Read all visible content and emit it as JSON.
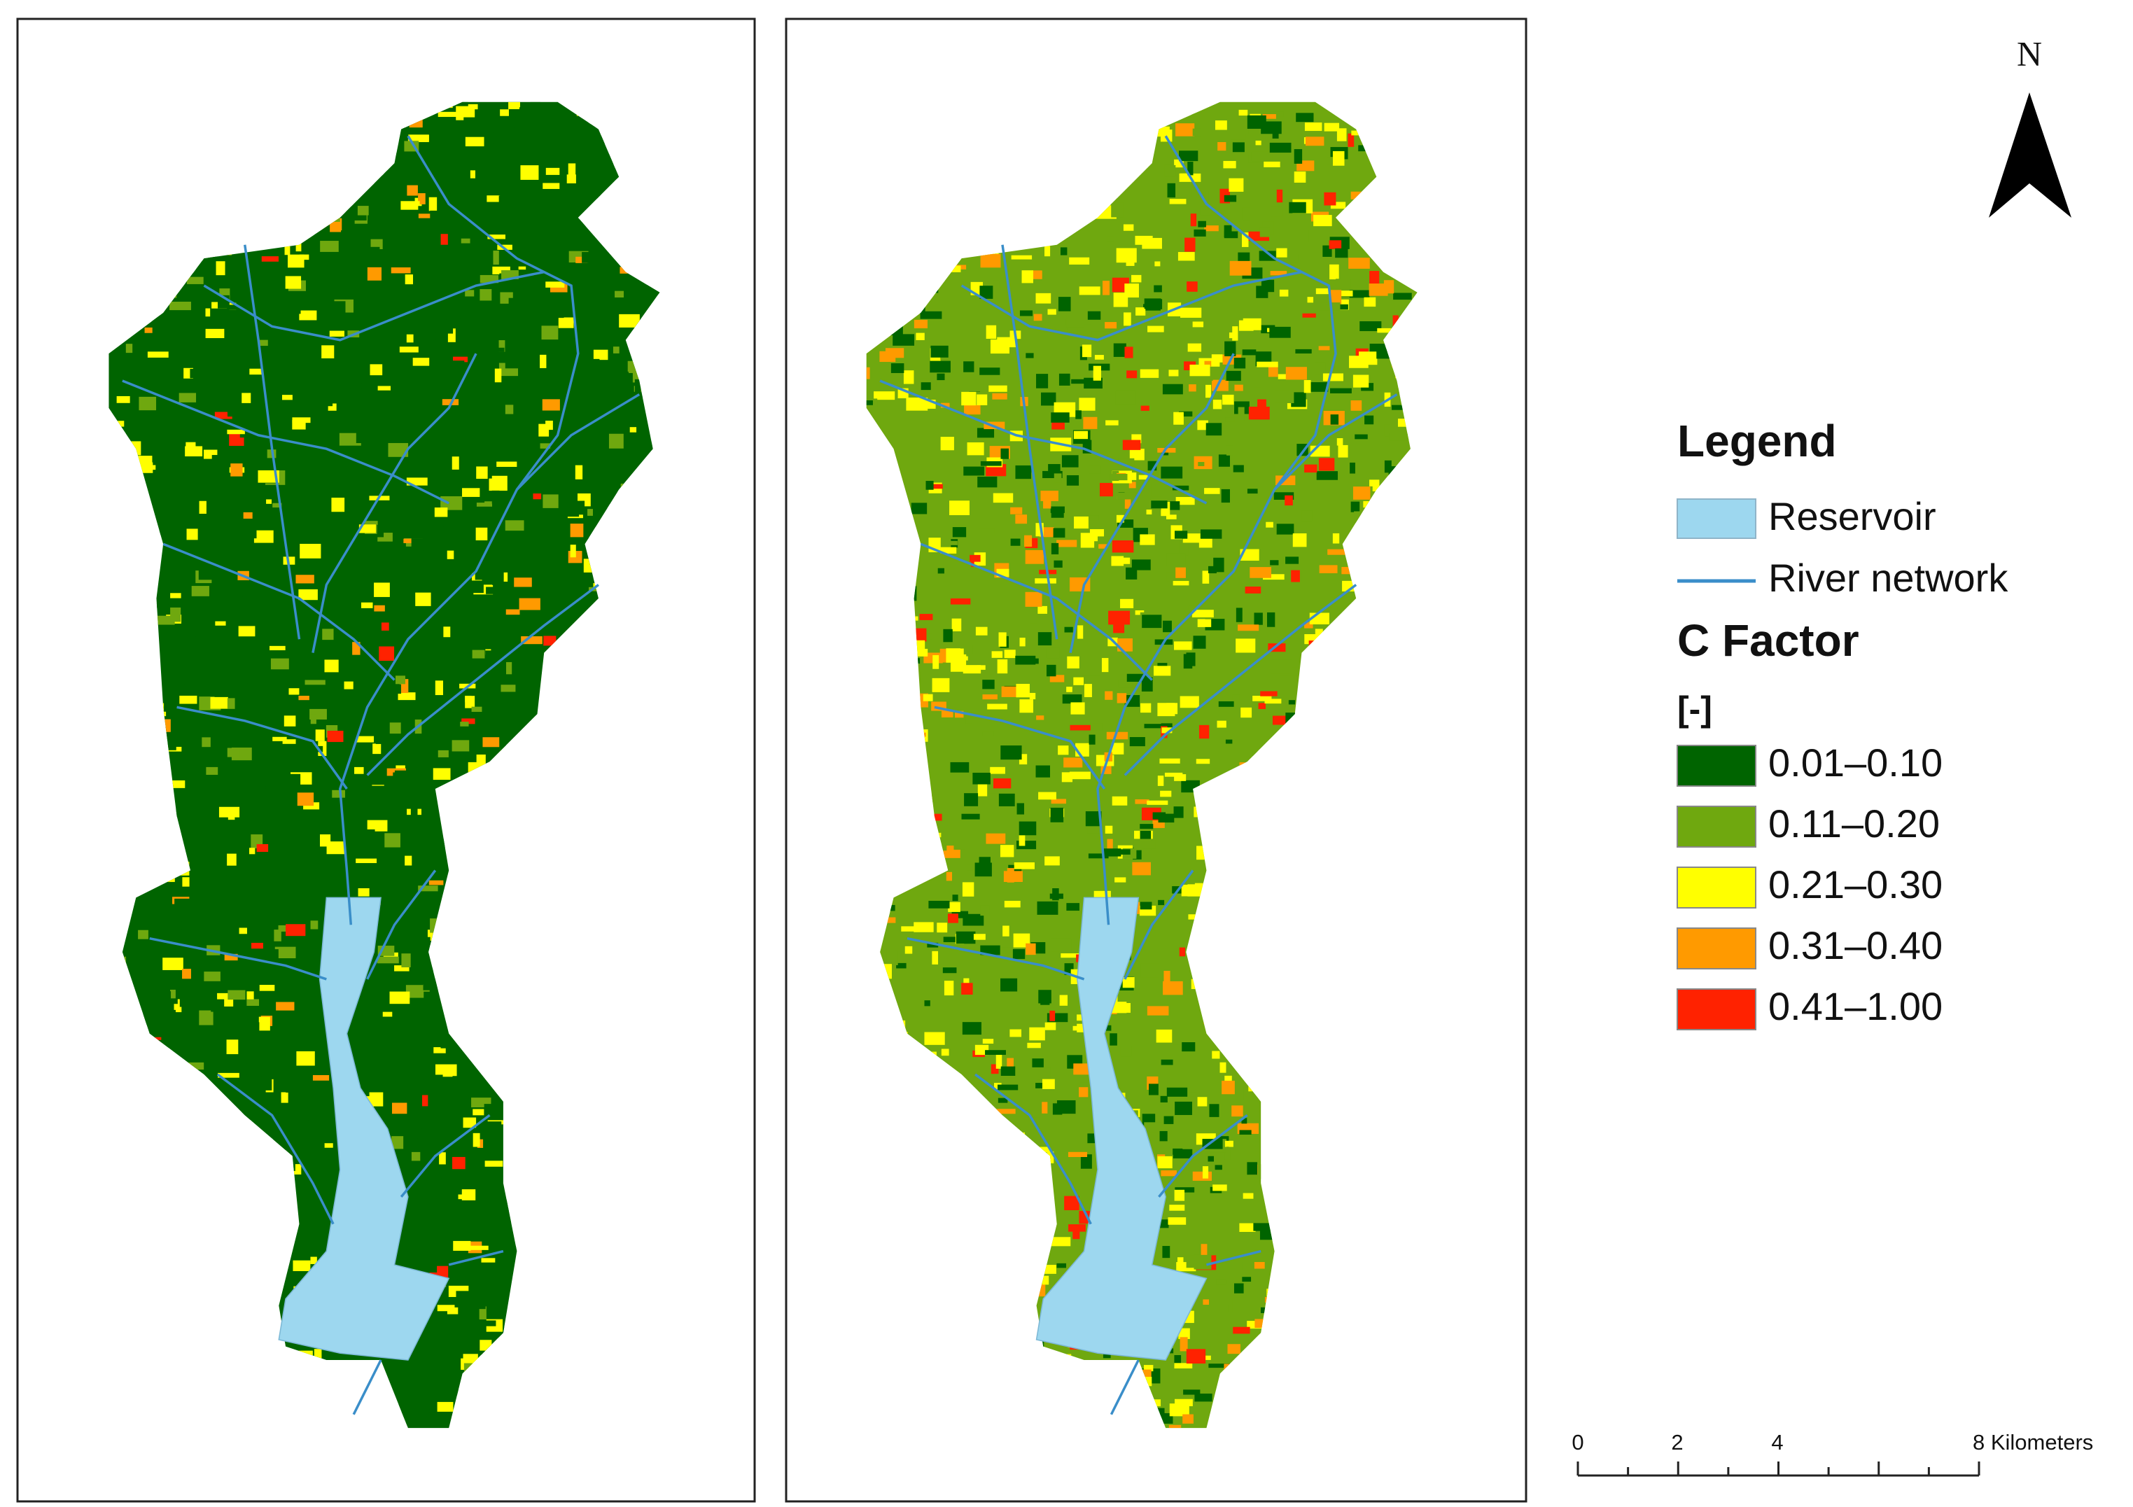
{
  "north_arrow": {
    "label": "N"
  },
  "legend": {
    "title": "Legend",
    "items": [
      {
        "label": "Reservoir",
        "color": "#9dd7ef"
      },
      {
        "label": "River network",
        "color": "#3a8ec9"
      }
    ],
    "c_factor": {
      "title": "C Factor",
      "unit": "[-]",
      "classes": [
        {
          "label": "0.01–0.10",
          "color": "#006400"
        },
        {
          "label": "0.11–0.20",
          "color": "#6fa80f"
        },
        {
          "label": "0.21–0.30",
          "color": "#ffff00"
        },
        {
          "label": "0.31–0.40",
          "color": "#ff9a00"
        },
        {
          "label": "0.41–1.00",
          "color": "#ff2200"
        }
      ]
    }
  },
  "scale_bar": {
    "labels": [
      "0",
      "2",
      "4",
      "8 Kilometers"
    ]
  }
}
